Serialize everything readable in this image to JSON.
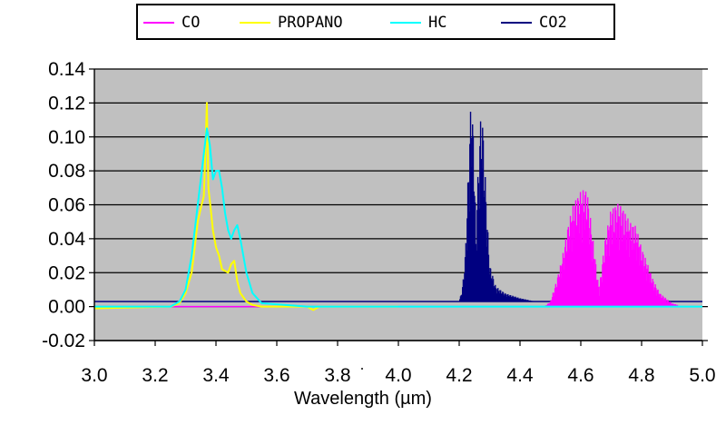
{
  "chart_data": {
    "type": "line",
    "title": "",
    "xlabel": "Wavelength (µm)",
    "ylabel": "",
    "xlim": [
      3.0,
      5.0
    ],
    "ylim": [
      -0.02,
      0.14
    ],
    "x_ticks": [
      "3.0",
      "3.2",
      "3.4",
      "3.6",
      "3.8",
      "4.0",
      "4.2",
      "4.4",
      "4.6",
      "4.8",
      "5.0"
    ],
    "y_ticks": [
      "-0.02",
      "0.00",
      "0.02",
      "0.04",
      "0.06",
      "0.08",
      "0.10",
      "0.12",
      "0.14"
    ],
    "grid": "horizontal",
    "plot_background": "#c0c0c0",
    "legend_position": "top",
    "series": [
      {
        "name": "CO",
        "color": "#ff00ff",
        "style": "dense-lines",
        "x": [
          3.0,
          4.48,
          4.5,
          4.52,
          4.54,
          4.56,
          4.58,
          4.6,
          4.62,
          4.64,
          4.66,
          4.68,
          4.7,
          4.72,
          4.74,
          4.76,
          4.78,
          4.8,
          4.82,
          4.84,
          4.86,
          4.88,
          4.9,
          4.92,
          4.94
        ],
        "y": [
          0.0,
          0.0,
          0.003,
          0.015,
          0.03,
          0.05,
          0.063,
          0.068,
          0.07,
          0.04,
          0.01,
          0.04,
          0.058,
          0.061,
          0.058,
          0.05,
          0.048,
          0.035,
          0.025,
          0.015,
          0.008,
          0.005,
          0.002,
          0.001,
          0.0
        ]
      },
      {
        "name": "PROPANO",
        "color": "#ffff00",
        "style": "line",
        "x": [
          3.0,
          3.25,
          3.28,
          3.3,
          3.32,
          3.33,
          3.34,
          3.35,
          3.36,
          3.365,
          3.37,
          3.375,
          3.38,
          3.39,
          3.4,
          3.41,
          3.42,
          3.44,
          3.45,
          3.46,
          3.47,
          3.48,
          3.5,
          3.52,
          3.55,
          3.7,
          3.72,
          3.74,
          4.0
        ],
        "y": [
          -0.001,
          0.0,
          0.002,
          0.008,
          0.02,
          0.035,
          0.05,
          0.058,
          0.065,
          0.09,
          0.12,
          0.07,
          0.062,
          0.045,
          0.035,
          0.03,
          0.022,
          0.02,
          0.025,
          0.027,
          0.015,
          0.008,
          0.003,
          0.001,
          0.0,
          0.0,
          -0.002,
          0.0,
          0.0
        ]
      },
      {
        "name": "HC",
        "color": "#00ffff",
        "style": "line",
        "x": [
          3.0,
          3.25,
          3.28,
          3.3,
          3.32,
          3.34,
          3.36,
          3.37,
          3.38,
          3.39,
          3.4,
          3.41,
          3.42,
          3.43,
          3.44,
          3.45,
          3.46,
          3.47,
          3.48,
          3.5,
          3.52,
          3.55,
          3.7,
          5.0
        ],
        "y": [
          0.0,
          0.0,
          0.003,
          0.01,
          0.03,
          0.06,
          0.09,
          0.105,
          0.095,
          0.075,
          0.08,
          0.08,
          0.07,
          0.055,
          0.045,
          0.04,
          0.045,
          0.048,
          0.04,
          0.02,
          0.008,
          0.002,
          0.0,
          0.0
        ]
      },
      {
        "name": "CO2",
        "color": "#000080",
        "style": "dense-lines",
        "x": [
          3.0,
          4.2,
          4.21,
          4.22,
          4.23,
          4.235,
          4.24,
          4.25,
          4.255,
          4.26,
          4.27,
          4.275,
          4.28,
          4.29,
          4.3,
          4.32,
          4.35,
          4.4,
          4.45,
          5.0
        ],
        "y": [
          0.003,
          0.003,
          0.01,
          0.03,
          0.08,
          0.105,
          0.127,
          0.09,
          0.04,
          0.07,
          0.11,
          0.115,
          0.1,
          0.06,
          0.025,
          0.012,
          0.008,
          0.005,
          0.003,
          0.003
        ]
      }
    ]
  },
  "legend": {
    "items": [
      {
        "label": "CO",
        "color": "#ff00ff"
      },
      {
        "label": "PROPANO",
        "color": "#ffff00"
      },
      {
        "label": "HC",
        "color": "#00ffff"
      },
      {
        "label": "CO2",
        "color": "#000080"
      }
    ]
  }
}
